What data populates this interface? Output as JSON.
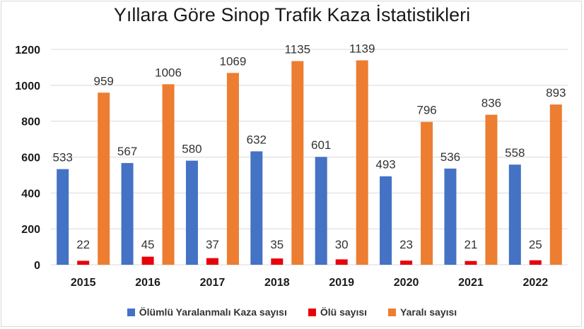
{
  "chart_data": {
    "type": "bar",
    "title": "Yıllara Göre Sinop Trafik Kaza İstatistikleri",
    "categories": [
      "2015",
      "2016",
      "2017",
      "2018",
      "2019",
      "2020",
      "2021",
      "2022"
    ],
    "series": [
      {
        "name": "Ölümlü Yaralanmalı Kaza sayısı",
        "color": "#4472c4",
        "values": [
          533,
          567,
          580,
          632,
          601,
          493,
          536,
          558
        ]
      },
      {
        "name": "Ölü sayısı",
        "color": "#e8000b",
        "values": [
          22,
          45,
          37,
          35,
          30,
          23,
          21,
          25
        ]
      },
      {
        "name": "Yaralı sayısı",
        "color": "#ed7d31",
        "values": [
          959,
          1006,
          1069,
          1135,
          1139,
          796,
          836,
          893
        ]
      }
    ],
    "yticks": [
      "0",
      "200",
      "400",
      "600",
      "800",
      "1000",
      "1200"
    ],
    "ylim": [
      0,
      1200
    ],
    "grid": true,
    "legend": "bottom"
  }
}
